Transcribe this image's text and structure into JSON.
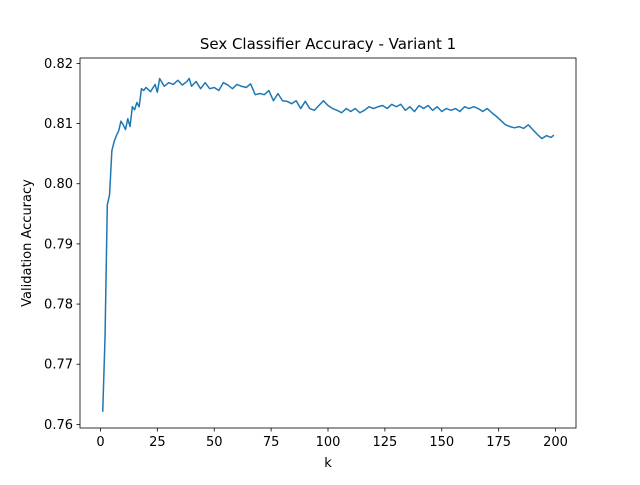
{
  "chart_data": {
    "type": "line",
    "title": "Sex Classifier Accuracy - Variant 1",
    "xlabel": "k",
    "ylabel": "Validation Accuracy",
    "xlim": [
      -9,
      209
    ],
    "ylim": [
      0.7594,
      0.8209
    ],
    "xticks": [
      0,
      25,
      50,
      75,
      100,
      125,
      150,
      175,
      200
    ],
    "yticks": [
      0.76,
      0.77,
      0.78,
      0.79,
      0.8,
      0.81,
      0.82
    ],
    "ytick_labels": [
      "0.76",
      "0.77",
      "0.78",
      "0.79",
      "0.80",
      "0.81",
      "0.82"
    ],
    "grid": false,
    "legend": "none",
    "series": [
      {
        "color": "#1f77b4",
        "x": [
          1,
          2,
          3,
          4,
          5,
          6,
          7,
          8,
          9,
          10,
          11,
          12,
          13,
          14,
          15,
          16,
          17,
          18,
          19,
          20,
          22,
          24,
          25,
          26,
          28,
          30,
          32,
          34,
          36,
          38,
          39,
          40,
          42,
          44,
          46,
          48,
          50,
          52,
          54,
          56,
          58,
          60,
          62,
          64,
          66,
          68,
          70,
          72,
          74,
          76,
          78,
          80,
          82,
          84,
          86,
          88,
          90,
          92,
          94,
          96,
          98,
          100,
          102,
          104,
          106,
          108,
          110,
          112,
          114,
          116,
          118,
          120,
          122,
          124,
          126,
          128,
          130,
          132,
          134,
          136,
          138,
          140,
          142,
          144,
          146,
          148,
          150,
          152,
          154,
          156,
          158,
          160,
          162,
          164,
          166,
          168,
          170,
          172,
          174,
          176,
          178,
          180,
          182,
          184,
          186,
          188,
          190,
          192,
          194,
          196,
          198,
          199
        ],
        "y": [
          0.7622,
          0.7745,
          0.7965,
          0.7982,
          0.8055,
          0.807,
          0.808,
          0.8088,
          0.8104,
          0.8098,
          0.809,
          0.8108,
          0.8095,
          0.8128,
          0.8123,
          0.8135,
          0.8128,
          0.8158,
          0.8155,
          0.816,
          0.8153,
          0.8165,
          0.8152,
          0.8175,
          0.8162,
          0.8168,
          0.8165,
          0.8172,
          0.8164,
          0.817,
          0.8175,
          0.8162,
          0.817,
          0.8158,
          0.8168,
          0.8158,
          0.816,
          0.8155,
          0.8168,
          0.8164,
          0.8158,
          0.8165,
          0.8162,
          0.816,
          0.8166,
          0.8148,
          0.815,
          0.8148,
          0.8155,
          0.8138,
          0.815,
          0.8138,
          0.8137,
          0.8133,
          0.8138,
          0.8125,
          0.8137,
          0.8125,
          0.8122,
          0.813,
          0.8138,
          0.813,
          0.8125,
          0.8122,
          0.8118,
          0.8125,
          0.812,
          0.8125,
          0.8118,
          0.8122,
          0.8128,
          0.8125,
          0.8128,
          0.813,
          0.8125,
          0.8132,
          0.8128,
          0.8132,
          0.8122,
          0.8128,
          0.812,
          0.813,
          0.8125,
          0.813,
          0.8122,
          0.8128,
          0.812,
          0.8125,
          0.8122,
          0.8125,
          0.812,
          0.8128,
          0.8125,
          0.8128,
          0.8125,
          0.812,
          0.8125,
          0.8118,
          0.8112,
          0.8105,
          0.8098,
          0.8095,
          0.8093,
          0.8095,
          0.8092,
          0.8098,
          0.809,
          0.8082,
          0.8075,
          0.808,
          0.8077,
          0.808
        ]
      }
    ]
  }
}
